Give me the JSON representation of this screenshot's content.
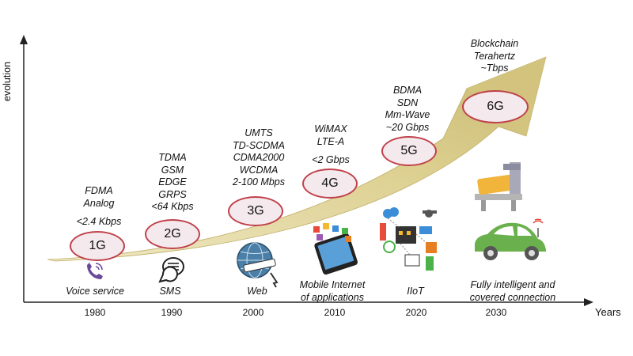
{
  "axes": {
    "y_label": "evolution",
    "x_label": "Years"
  },
  "generations": [
    {
      "name": "1G",
      "year": "1980",
      "techs": [
        "FDMA",
        "Analog",
        "",
        "<2.4 Kbps"
      ],
      "caption": [
        "Voice service"
      ],
      "icon": "phone-icon"
    },
    {
      "name": "2G",
      "year": "1990",
      "techs": [
        "TDMA",
        "GSM",
        "EDGE",
        "GRPS",
        "<64 Kbps"
      ],
      "caption": [
        "SMS"
      ],
      "icon": "sms-chat-icon"
    },
    {
      "name": "3G",
      "year": "2000",
      "techs": [
        "UMTS",
        "TD-SCDMA",
        "CDMA2000",
        "WCDMA",
        "2-100 Mbps"
      ],
      "caption": [
        "Web"
      ],
      "icon": "globe-web-icon"
    },
    {
      "name": "4G",
      "year": "2010",
      "techs": [
        "WiMAX",
        "LTE-A",
        "",
        "<2 Gbps"
      ],
      "caption": [
        "Mobile Internet",
        "of applications"
      ],
      "icon": "smartphone-apps-icon"
    },
    {
      "name": "5G",
      "year": "2020",
      "techs": [
        "BDMA",
        "SDN",
        "Mm-Wave",
        "~20 Gbps"
      ],
      "caption": [
        "IIoT"
      ],
      "icon": "industrial-iot-icon"
    },
    {
      "name": "6G",
      "year": "2030",
      "techs": [
        "Blockchain",
        "Terahertz",
        "~Tbps"
      ],
      "caption": [
        "Fully intelligent and",
        "covered connection"
      ],
      "icon": "car-robot-icon"
    }
  ],
  "colors": {
    "arrow": "#d9cc8a",
    "arrow_dark": "#c9b66a",
    "ellipse_border": "#c0404a",
    "ellipse_fill": "#f4e9ec",
    "axis": "#222222"
  }
}
